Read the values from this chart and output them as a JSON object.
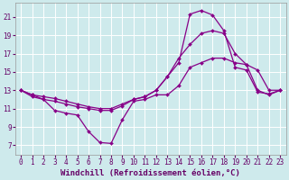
{
  "xlabel": "Windchill (Refroidissement éolien,°C)",
  "background_color": "#ceeaec",
  "line_color": "#880088",
  "grid_color": "#ffffff",
  "xlim": [
    -0.5,
    23.5
  ],
  "ylim": [
    6.0,
    22.5
  ],
  "xticks": [
    0,
    1,
    2,
    3,
    4,
    5,
    6,
    7,
    8,
    9,
    10,
    11,
    12,
    13,
    14,
    15,
    16,
    17,
    18,
    19,
    20,
    21,
    22,
    23
  ],
  "yticks": [
    7,
    9,
    11,
    13,
    15,
    17,
    19,
    21
  ],
  "line1_x": [
    0,
    1,
    2,
    3,
    4,
    5,
    6,
    7,
    8,
    9,
    10,
    11,
    12,
    13,
    14,
    15,
    16,
    17,
    18,
    19,
    20,
    21,
    22,
    23
  ],
  "line1_y": [
    13.0,
    12.5,
    12.3,
    12.1,
    11.8,
    11.5,
    11.2,
    11.0,
    11.0,
    11.5,
    12.0,
    12.3,
    13.0,
    14.5,
    16.5,
    18.0,
    19.2,
    19.5,
    19.2,
    17.0,
    15.8,
    15.2,
    13.0,
    13.0
  ],
  "line2_x": [
    0,
    1,
    2,
    3,
    4,
    5,
    6,
    7,
    8,
    9,
    10,
    11,
    12,
    13,
    14,
    15,
    16,
    17,
    18,
    19,
    20,
    21,
    22,
    23
  ],
  "line2_y": [
    13.0,
    12.5,
    12.0,
    11.8,
    11.5,
    11.2,
    11.0,
    10.8,
    10.8,
    11.3,
    12.0,
    12.3,
    13.0,
    14.5,
    16.0,
    21.3,
    21.7,
    21.2,
    19.5,
    15.5,
    15.2,
    12.8,
    12.6,
    13.0
  ],
  "line3_x": [
    0,
    1,
    2,
    3,
    4,
    5,
    6,
    7,
    8,
    9,
    10,
    11,
    12,
    13,
    14,
    15,
    16,
    17,
    18,
    19,
    20,
    21,
    22,
    23
  ],
  "line3_y": [
    13.0,
    12.3,
    12.0,
    10.8,
    10.5,
    10.3,
    8.5,
    7.3,
    7.2,
    9.8,
    11.8,
    12.0,
    12.5,
    12.5,
    13.5,
    15.5,
    16.0,
    16.5,
    16.5,
    16.0,
    15.8,
    13.0,
    12.5,
    13.0
  ],
  "marker": "D",
  "markersize": 2.0,
  "linewidth": 0.9,
  "tick_fontsize": 5.5,
  "xlabel_fontsize": 6.5
}
